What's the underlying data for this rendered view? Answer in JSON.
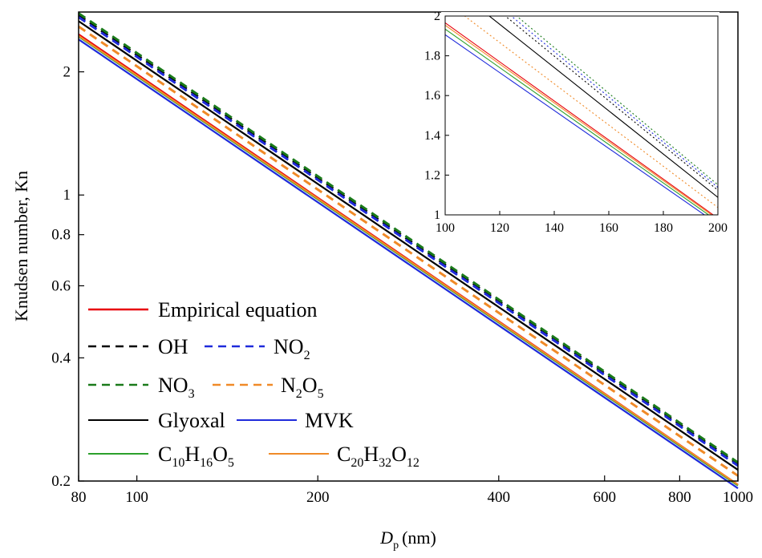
{
  "chart_data": [
    {
      "type": "line",
      "xlabel_main": "D",
      "xlabel_sub": "p",
      "xlabel_unit": "(nm)",
      "ylabel": "Knudsen number, Kn",
      "xscale": "log",
      "yscale": "log",
      "xlim": [
        80,
        1000
      ],
      "ylim": [
        0.2,
        2.8
      ],
      "xticks": [
        80,
        100,
        200,
        400,
        600,
        800,
        1000
      ],
      "yticks": [
        0.2,
        0.4,
        0.6,
        0.8,
        1,
        2
      ],
      "legend_placement": "center-left",
      "series": [
        {
          "name": "Empirical equation",
          "color": "#e8000b",
          "style": "solid",
          "x": [
            80,
            1000
          ],
          "y": [
            2.47,
            0.196
          ]
        },
        {
          "name": "OH",
          "color": "#000000",
          "style": "dashed",
          "x": [
            80,
            1000
          ],
          "y": [
            2.75,
            0.22
          ]
        },
        {
          "name": "NO",
          "name_sub": "2",
          "color": "#1f2bdb",
          "style": "dashed",
          "x": [
            80,
            1000
          ],
          "y": [
            2.72,
            0.218
          ]
        },
        {
          "name": "NO",
          "name_sub": "3",
          "color": "#1a7a1a",
          "style": "dashed",
          "x": [
            80,
            1000
          ],
          "y": [
            2.78,
            0.222
          ]
        },
        {
          "name": "N",
          "name_sub": "2",
          "name_tail": "O",
          "name_tail_sub": "5",
          "color": "#f08a28",
          "style": "dashed",
          "x": [
            80,
            1000
          ],
          "y": [
            2.58,
            0.206
          ]
        },
        {
          "name": "Glyoxal",
          "color": "#000000",
          "style": "solid",
          "x": [
            80,
            1000
          ],
          "y": [
            2.66,
            0.213
          ]
        },
        {
          "name": "MVK",
          "color": "#1f2bdb",
          "style": "solid",
          "x": [
            80,
            1000
          ],
          "y": [
            2.4,
            0.192
          ]
        },
        {
          "name": "C",
          "name_sub": "10",
          "name_tail": "H",
          "name_tail_sub": "16",
          "name_tail2": "O",
          "name_tail2_sub": "5",
          "color": "#2ca02c",
          "style": "solid",
          "x": [
            80,
            1000
          ],
          "y": [
            2.44,
            0.195
          ]
        },
        {
          "name": "C",
          "name_sub": "20",
          "name_tail": "H",
          "name_tail_sub": "32",
          "name_tail2": "O",
          "name_tail2_sub": "12",
          "color": "#f08a28",
          "style": "solid",
          "x": [
            80,
            1000
          ],
          "y": [
            2.45,
            0.196
          ]
        }
      ]
    },
    {
      "type": "line",
      "inset": true,
      "xscale": "linear",
      "yscale": "linear",
      "xlim": [
        100,
        200
      ],
      "ylim": [
        1,
        2
      ],
      "xticks": [
        100,
        120,
        140,
        160,
        180,
        200
      ],
      "yticks": [
        1,
        1.2,
        1.4,
        1.6,
        1.8,
        2
      ],
      "series": [
        {
          "ref": "OH",
          "color": "#000000",
          "style": "dotted",
          "x": [
            100,
            200
          ],
          "y": [
            2.248,
            1.124
          ]
        },
        {
          "ref": "NO2",
          "color": "#1f2bdb",
          "style": "dotted",
          "x": [
            100,
            200
          ],
          "y": [
            2.276,
            1.138
          ]
        },
        {
          "ref": "NO3",
          "color": "#1a7a1a",
          "style": "dotted",
          "x": [
            100,
            200
          ],
          "y": [
            2.302,
            1.151
          ]
        },
        {
          "ref": "Glyoxal",
          "color": "#000000",
          "style": "solid",
          "x": [
            100,
            200
          ],
          "y": [
            2.176,
            1.088
          ]
        },
        {
          "ref": "N2O5",
          "color": "#f08a28",
          "style": "dotted",
          "x": [
            100,
            200
          ],
          "y": [
            2.074,
            1.037
          ]
        },
        {
          "ref": "Empirical equation",
          "color": "#e8000b",
          "style": "solid",
          "x": [
            100,
            200
          ],
          "y": [
            1.966,
            0.983
          ]
        },
        {
          "ref": "C20H32O12",
          "color": "#f08a28",
          "style": "solid",
          "x": [
            100,
            200
          ],
          "y": [
            1.954,
            0.977
          ]
        },
        {
          "ref": "C10H16O5",
          "color": "#2ca02c",
          "style": "solid",
          "x": [
            100,
            200
          ],
          "y": [
            1.934,
            0.967
          ]
        },
        {
          "ref": "MVK",
          "color": "#1f2bdb",
          "style": "solid",
          "x": [
            100,
            200
          ],
          "y": [
            1.906,
            0.953
          ]
        }
      ]
    }
  ]
}
